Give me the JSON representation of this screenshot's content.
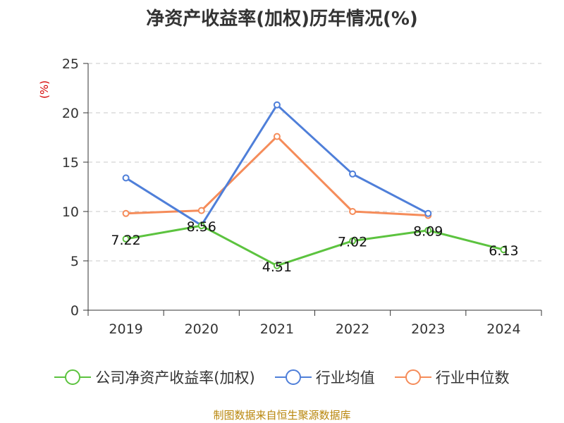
{
  "chart_data": {
    "type": "line",
    "title": "净资产收益率(加权)历年情况(%)",
    "ylabel": "(%)",
    "xlabel": "",
    "categories": [
      "2019",
      "2020",
      "2021",
      "2022",
      "2023",
      "2024"
    ],
    "ylim": [
      0,
      25
    ],
    "yticks": [
      0,
      5,
      10,
      15,
      20,
      25
    ],
    "grid": true,
    "legend_position": "bottom",
    "series": [
      {
        "name": "公司净资产收益率(加权)",
        "color": "#5cc33f",
        "values": [
          7.22,
          8.56,
          4.51,
          7.02,
          8.09,
          6.13
        ],
        "labels": [
          "7.22",
          "8.56",
          "4.51",
          "7.02",
          "8.09",
          "6.13"
        ]
      },
      {
        "name": "行业均值",
        "color": "#4f7fd9",
        "values": [
          13.4,
          8.6,
          20.8,
          13.8,
          9.8,
          null
        ]
      },
      {
        "name": "行业中位数",
        "color": "#f58c5a",
        "values": [
          9.8,
          10.1,
          17.6,
          10.0,
          9.6,
          null
        ]
      }
    ]
  },
  "source": "制图数据来自恒生聚源数据库"
}
